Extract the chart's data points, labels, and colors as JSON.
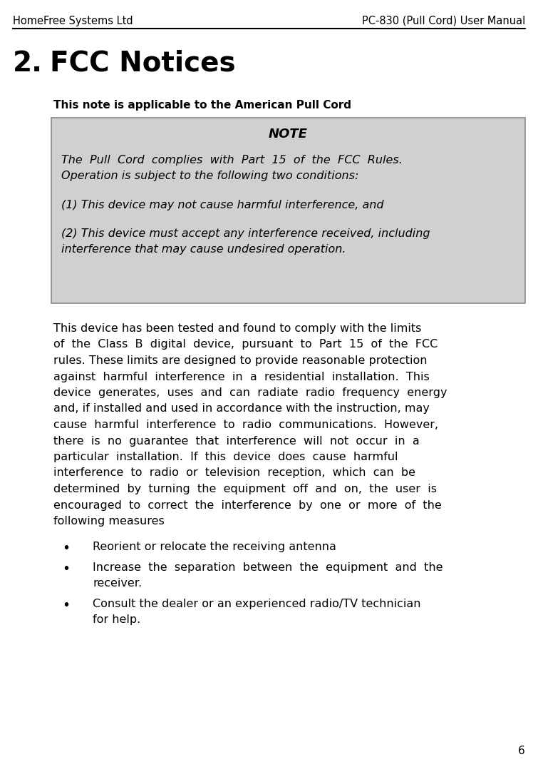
{
  "page_width": 7.55,
  "page_height": 10.82,
  "dpi": 100,
  "bg_color": "#ffffff",
  "header_left": "HomeFree Systems Ltd",
  "header_right": "PC-830 (Pull Cord) User Manual",
  "header_font_size": 10.5,
  "section_number": "2.",
  "section_title": "FCC Notices",
  "section_title_font_size": 28,
  "note_applicable_text": "This note is applicable to the American Pull Cord",
  "note_applicable_font_size": 11,
  "note_box_bg": "#d0d0d0",
  "note_box_border": "#888888",
  "note_title": "NOTE",
  "note_title_font_size": 13,
  "note_body_font_size": 11.5,
  "note_lines": [
    "The  Pull  Cord  complies  with  Part  15  of  the  FCC  Rules.",
    "Operation is subject to the following two conditions:",
    "(1) This device may not cause harmful interference, and",
    "(2) This device must accept any interference received, including",
    "interference that may cause undesired operation."
  ],
  "body_font_size": 11.5,
  "body_lines": [
    "This device has been tested and found to comply with the limits",
    "of  the  Class  B  digital  device,  pursuant  to  Part  15  of  the  FCC",
    "rules. These limits are designed to provide reasonable protection",
    "against  harmful  interference  in  a  residential  installation.  This",
    "device  generates,  uses  and  can  radiate  radio  frequency  energy",
    "and, if installed and used in accordance with the instruction, may",
    "cause  harmful  interference  to  radio  communications.  However,",
    "there  is  no  guarantee  that  interference  will  not  occur  in  a",
    "particular  installation.  If  this  device  does  cause  harmful",
    "interference  to  radio  or  television  reception,  which  can  be",
    "determined  by  turning  the  equipment  off  and  on,  the  user  is",
    "encouraged  to  correct  the  interference  by  one  or  more  of  the",
    "following measures"
  ],
  "bullets": [
    [
      "Reorient or relocate the receiving antenna"
    ],
    [
      "Increase  the  separation  between  the  equipment  and  the",
      "receiver."
    ],
    [
      "Consult the dealer or an experienced radio/TV technician",
      "for help."
    ]
  ],
  "page_number": "6",
  "page_number_font_size": 11
}
